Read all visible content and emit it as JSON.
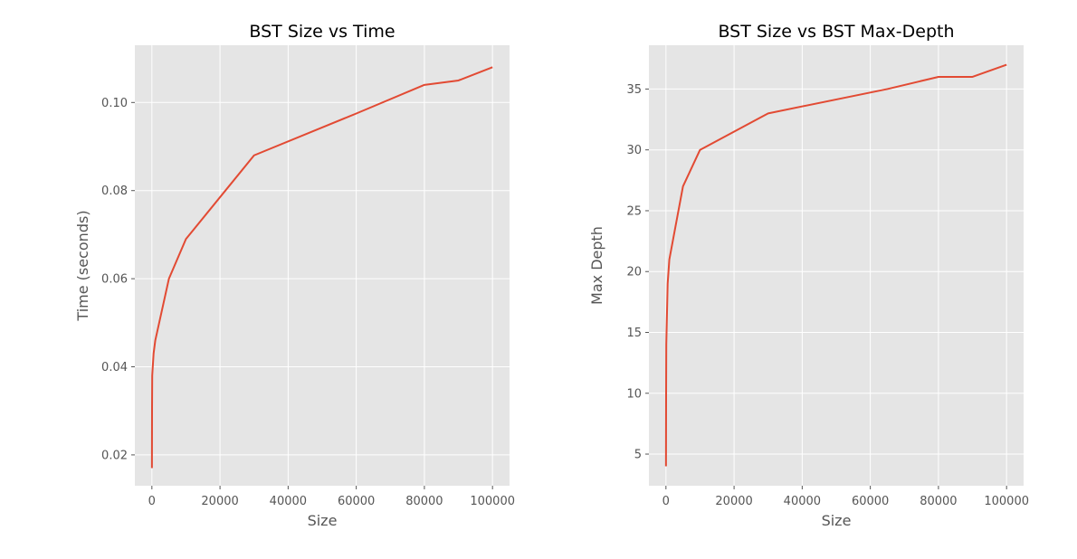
{
  "chart_data": [
    {
      "type": "line",
      "title": "BST Size vs Time",
      "xlabel": "Size",
      "ylabel": "Time (seconds)",
      "xlim": [
        -5000,
        105000
      ],
      "ylim": [
        0.013,
        0.113
      ],
      "xticks": [
        0,
        20000,
        40000,
        60000,
        80000,
        100000
      ],
      "yticks": [
        0.02,
        0.04,
        0.06,
        0.08,
        0.1
      ],
      "ytick_labels": [
        "0.02",
        "0.04",
        "0.06",
        "0.08",
        "0.10"
      ],
      "grid": true,
      "series": [
        {
          "color": "#e24a33",
          "x": [
            10,
            50,
            100,
            500,
            1000,
            5000,
            10000,
            30000,
            60000,
            80000,
            90000,
            100000
          ],
          "y": [
            0.017,
            0.031,
            0.038,
            0.043,
            0.046,
            0.06,
            0.069,
            0.088,
            0.0975,
            0.104,
            0.105,
            0.108
          ]
        }
      ]
    },
    {
      "type": "line",
      "title": "BST Size vs BST Max-Depth",
      "xlabel": "Size",
      "ylabel": "Max Depth",
      "xlim": [
        -5000,
        105000
      ],
      "ylim": [
        2.4,
        38.6
      ],
      "xticks": [
        0,
        20000,
        40000,
        60000,
        80000,
        100000
      ],
      "yticks": [
        5,
        10,
        15,
        20,
        25,
        30,
        35
      ],
      "ytick_labels": [
        "5",
        "10",
        "15",
        "20",
        "25",
        "30",
        "35"
      ],
      "grid": true,
      "series": [
        {
          "color": "#e24a33",
          "x": [
            10,
            50,
            100,
            500,
            1000,
            5000,
            10000,
            30000,
            65000,
            80000,
            90000,
            100000
          ],
          "y": [
            4,
            10,
            14,
            19,
            21,
            27,
            30,
            33,
            35,
            36,
            36,
            37
          ]
        }
      ]
    }
  ]
}
